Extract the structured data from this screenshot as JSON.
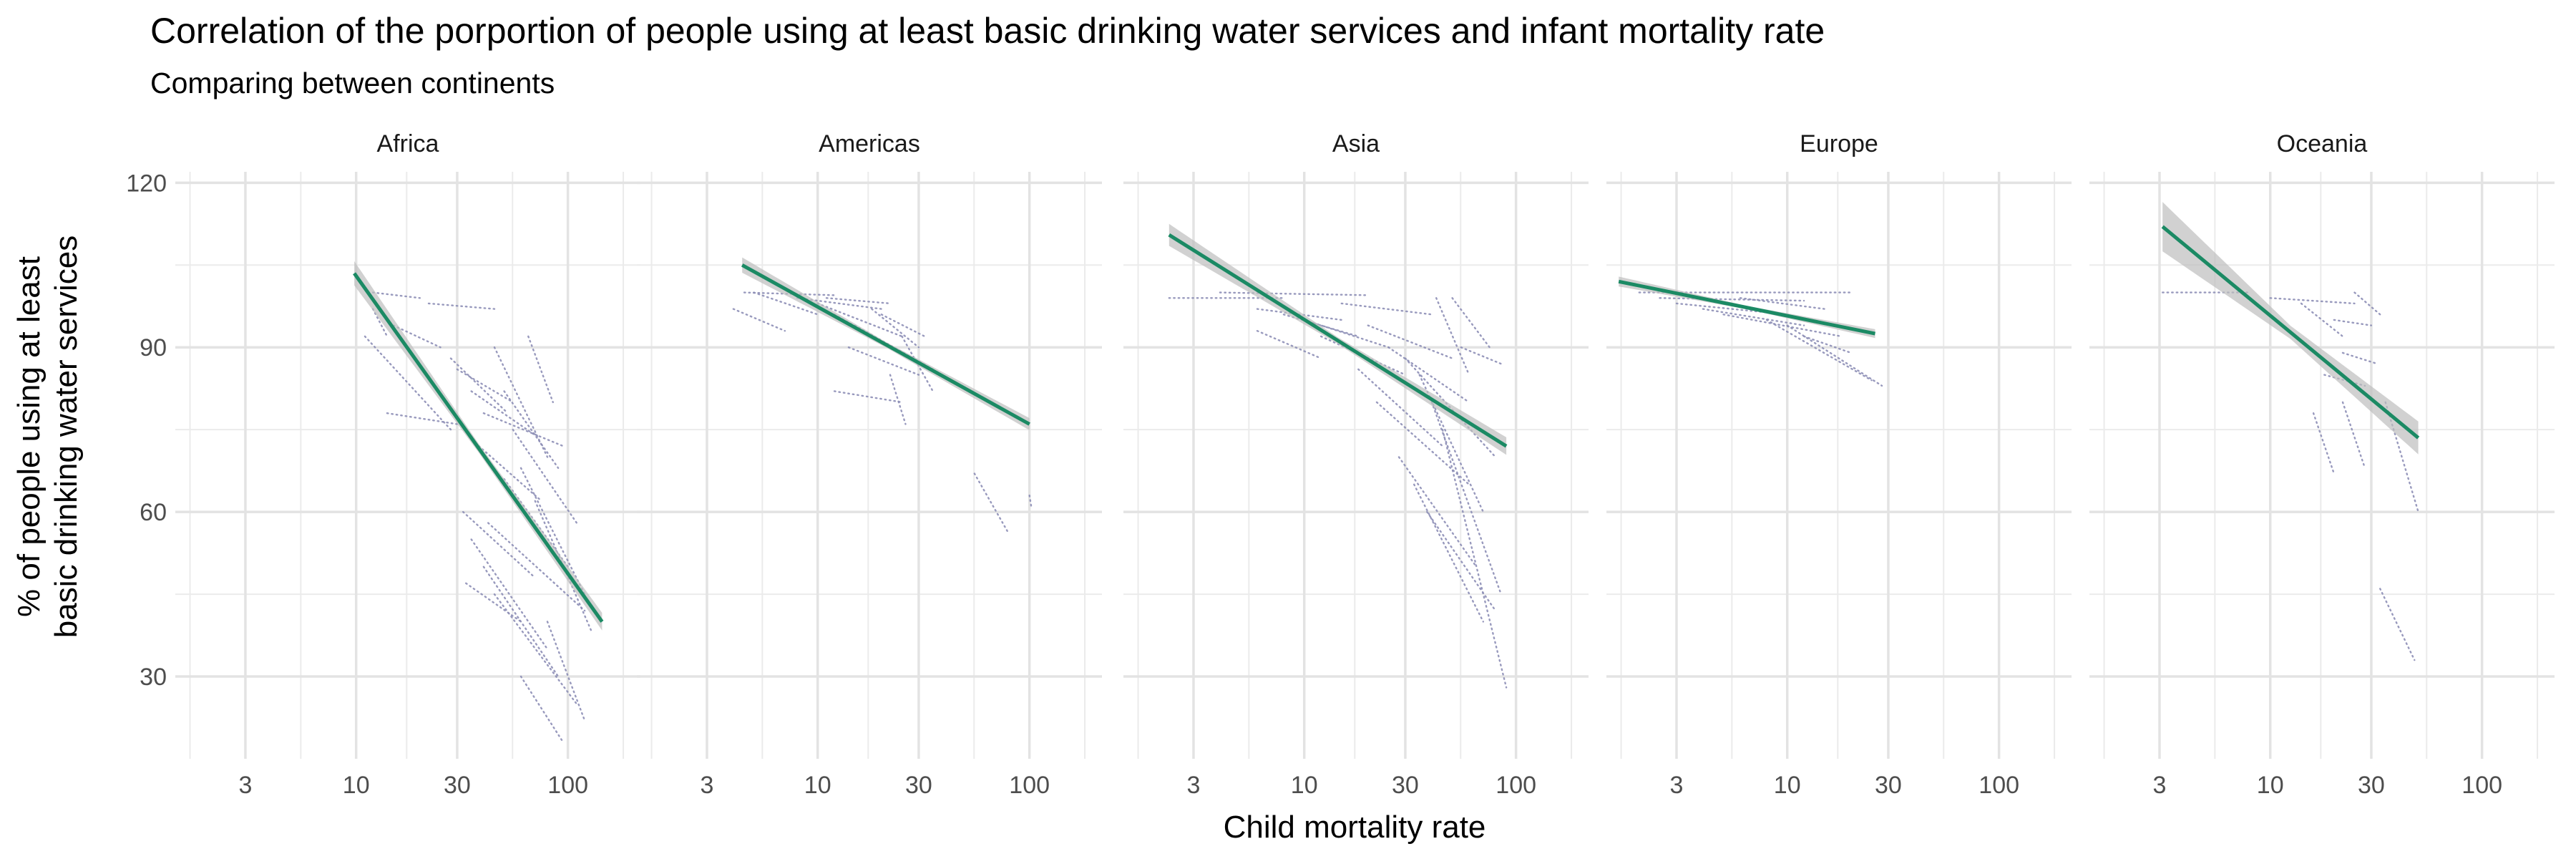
{
  "chart_data": {
    "type": "scatter",
    "title": "Correlation of the porportion of people using at least basic drinking water services and infant mortality rate",
    "subtitle": "Comparing between continents",
    "xlabel": "Child mortality rate",
    "ylabel_lines": [
      "% of people using at least",
      "basic drinking water services"
    ],
    "x_scale": "log10",
    "xlim": [
      1.4,
      220
    ],
    "ylim": [
      15,
      122
    ],
    "x_ticks": [
      3,
      10,
      30,
      100
    ],
    "x_tick_labels": [
      "3",
      "10",
      "30",
      "100"
    ],
    "y_ticks": [
      30,
      60,
      90,
      120
    ],
    "y_tick_labels": [
      "30",
      "60",
      "90",
      "120"
    ],
    "grid": true,
    "colors": {
      "points": "#8d8fb6",
      "fit_line": "#1b8a64",
      "confidence_band": "#bdbdbd",
      "grid": "#ebebeb"
    },
    "panels": [
      {
        "name": "Africa",
        "fit": {
          "x": [
            9.8,
            145
          ],
          "y": [
            103.5,
            40.0
          ]
        },
        "band_halfwidth": [
          2.2,
          0.8,
          1.6
        ],
        "tracks": [
          {
            "x": [
              12,
              20
            ],
            "y": [
              100,
              99
            ]
          },
          {
            "x": [
              12,
              14
            ],
            "y": [
              97,
              92
            ]
          },
          {
            "x": [
              15,
              25
            ],
            "y": [
              94,
              90
            ]
          },
          {
            "x": [
              14,
              30
            ],
            "y": [
              78,
              76
            ]
          },
          {
            "x": [
              11,
              28
            ],
            "y": [
              92,
              75
            ]
          },
          {
            "x": [
              22,
              45
            ],
            "y": [
              98,
              97
            ]
          },
          {
            "x": [
              30,
              55
            ],
            "y": [
              86,
              80
            ]
          },
          {
            "x": [
              35,
              70
            ],
            "y": [
              82,
              74
            ]
          },
          {
            "x": [
              40,
              95
            ],
            "y": [
              78,
              72
            ]
          },
          {
            "x": [
              45,
              80
            ],
            "y": [
              90,
              70
            ]
          },
          {
            "x": [
              55,
              110
            ],
            "y": [
              75,
              58
            ]
          },
          {
            "x": [
              50,
              100
            ],
            "y": [
              66,
              50
            ]
          },
          {
            "x": [
              60,
              120
            ],
            "y": [
              68,
              45
            ]
          },
          {
            "x": [
              70,
              130
            ],
            "y": [
              62,
              38
            ]
          },
          {
            "x": [
              32,
              70
            ],
            "y": [
              60,
              48
            ]
          },
          {
            "x": [
              35,
              80
            ],
            "y": [
              55,
              35
            ]
          },
          {
            "x": [
              40,
              90
            ],
            "y": [
              50,
              30
            ]
          },
          {
            "x": [
              45,
              110
            ],
            "y": [
              45,
              25
            ]
          },
          {
            "x": [
              60,
              95
            ],
            "y": [
              30,
              18
            ]
          },
          {
            "x": [
              80,
              120
            ],
            "y": [
              40,
              22
            ]
          },
          {
            "x": [
              38,
              75
            ],
            "y": [
              72,
              62
            ]
          },
          {
            "x": [
              50,
              90
            ],
            "y": [
              82,
              68
            ]
          },
          {
            "x": [
              65,
              85
            ],
            "y": [
              92,
              80
            ]
          },
          {
            "x": [
              28,
              52
            ],
            "y": [
              88,
              78
            ]
          },
          {
            "x": [
              42,
              120
            ],
            "y": [
              58,
              42
            ]
          },
          {
            "x": [
              33,
              60
            ],
            "y": [
              47,
              40
            ]
          }
        ]
      },
      {
        "name": "Americas",
        "fit": {
          "x": [
            4.4,
            100
          ],
          "y": [
            105.0,
            76.0
          ]
        },
        "band_halfwidth": [
          1.4,
          0.5,
          1.1
        ],
        "tracks": [
          {
            "x": [
              4.5,
              12
            ],
            "y": [
              100,
              99.5
            ]
          },
          {
            "x": [
              4,
              7
            ],
            "y": [
              97,
              93
            ]
          },
          {
            "x": [
              5,
              10
            ],
            "y": [
              100,
              96
            ]
          },
          {
            "x": [
              8,
              20
            ],
            "y": [
              99,
              97
            ]
          },
          {
            "x": [
              10,
              25
            ],
            "y": [
              98,
              92
            ]
          },
          {
            "x": [
              12,
              28
            ],
            "y": [
              96,
              88
            ]
          },
          {
            "x": [
              15,
              35
            ],
            "y": [
              94,
              86
            ]
          },
          {
            "x": [
              11,
              22
            ],
            "y": [
              99,
              98
            ]
          },
          {
            "x": [
              18,
              30
            ],
            "y": [
              97,
              90
            ]
          },
          {
            "x": [
              20,
              32
            ],
            "y": [
              96,
              92
            ]
          },
          {
            "x": [
              25,
              35
            ],
            "y": [
              92,
              82
            ]
          },
          {
            "x": [
              12,
              25
            ],
            "y": [
              82,
              80
            ]
          },
          {
            "x": [
              14,
              30
            ],
            "y": [
              90,
              85
            ]
          },
          {
            "x": [
              22,
              26
            ],
            "y": [
              85,
              76
            ]
          },
          {
            "x": [
              55,
              80
            ],
            "y": [
              67,
              56
            ]
          },
          {
            "x": [
              100,
              102
            ],
            "y": [
              63,
              61
            ]
          }
        ]
      },
      {
        "name": "Asia",
        "fit": {
          "x": [
            2.3,
            90
          ],
          "y": [
            110.5,
            72.0
          ]
        },
        "band_halfwidth": [
          2.0,
          0.6,
          1.6
        ],
        "tracks": [
          {
            "x": [
              2.3,
              8
            ],
            "y": [
              99,
              99
            ]
          },
          {
            "x": [
              4,
              20
            ],
            "y": [
              100,
              99.5
            ]
          },
          {
            "x": [
              6,
              15
            ],
            "y": [
              97,
              95
            ]
          },
          {
            "x": [
              6,
              12
            ],
            "y": [
              93,
              88
            ]
          },
          {
            "x": [
              8,
              18
            ],
            "y": [
              96,
              92
            ]
          },
          {
            "x": [
              10,
              25
            ],
            "y": [
              95,
              90
            ]
          },
          {
            "x": [
              12,
              30
            ],
            "y": [
              92,
              85
            ]
          },
          {
            "x": [
              15,
              40
            ],
            "y": [
              98,
              96
            ]
          },
          {
            "x": [
              20,
              50
            ],
            "y": [
              94,
              88
            ]
          },
          {
            "x": [
              25,
              60
            ],
            "y": [
              90,
              80
            ]
          },
          {
            "x": [
              30,
              80
            ],
            "y": [
              88,
              70
            ]
          },
          {
            "x": [
              35,
              70
            ],
            "y": [
              85,
              60
            ]
          },
          {
            "x": [
              40,
              85
            ],
            "y": [
              80,
              45
            ]
          },
          {
            "x": [
              45,
              90
            ],
            "y": [
              75,
              28
            ]
          },
          {
            "x": [
              50,
              75
            ],
            "y": [
              99,
              90
            ]
          },
          {
            "x": [
              55,
              85
            ],
            "y": [
              90,
              87
            ]
          },
          {
            "x": [
              22,
              60
            ],
            "y": [
              80,
              65
            ]
          },
          {
            "x": [
              28,
              65
            ],
            "y": [
              70,
              50
            ]
          },
          {
            "x": [
              33,
              70
            ],
            "y": [
              65,
              40
            ]
          },
          {
            "x": [
              18,
              45
            ],
            "y": [
              86,
              72
            ]
          },
          {
            "x": [
              38,
              80
            ],
            "y": [
              60,
              42
            ]
          },
          {
            "x": [
              42,
              60
            ],
            "y": [
              99,
              85
            ]
          }
        ]
      },
      {
        "name": "Europe",
        "fit": {
          "x": [
            1.6,
            26
          ],
          "y": [
            102.0,
            92.5
          ]
        },
        "band_halfwidth": [
          0.9,
          0.3,
          0.8
        ],
        "tracks": [
          {
            "x": [
              2,
              20
            ],
            "y": [
              100,
              100
            ]
          },
          {
            "x": [
              2.5,
              12
            ],
            "y": [
              99,
              98.5
            ]
          },
          {
            "x": [
              3,
              10
            ],
            "y": [
              98,
              96
            ]
          },
          {
            "x": [
              4,
              12
            ],
            "y": [
              97,
              94
            ]
          },
          {
            "x": [
              5,
              18
            ],
            "y": [
              96,
              92
            ]
          },
          {
            "x": [
              8,
              25
            ],
            "y": [
              95,
              84
            ]
          },
          {
            "x": [
              10,
              28
            ],
            "y": [
              94,
              83
            ]
          },
          {
            "x": [
              6,
              15
            ],
            "y": [
              99,
              97
            ]
          },
          {
            "x": [
              12,
              20
            ],
            "y": [
              92,
              89
            ]
          }
        ]
      },
      {
        "name": "Oceania",
        "fit": {
          "x": [
            3.1,
            50
          ],
          "y": [
            112.0,
            73.5
          ]
        },
        "band_halfwidth": [
          4.5,
          1.2,
          3.0
        ],
        "tracks": [
          {
            "x": [
              3.1,
              8
            ],
            "y": [
              100,
              100
            ]
          },
          {
            "x": [
              10,
              25
            ],
            "y": [
              99,
              98
            ]
          },
          {
            "x": [
              25,
              33
            ],
            "y": [
              100,
              96
            ]
          },
          {
            "x": [
              20,
              30
            ],
            "y": [
              95,
              94
            ]
          },
          {
            "x": [
              22,
              32
            ],
            "y": [
              89,
              87
            ]
          },
          {
            "x": [
              18,
              28
            ],
            "y": [
              85,
              83
            ]
          },
          {
            "x": [
              16,
              20
            ],
            "y": [
              78,
              67
            ]
          },
          {
            "x": [
              22,
              28
            ],
            "y": [
              80,
              68
            ]
          },
          {
            "x": [
              35,
              50
            ],
            "y": [
              80,
              60
            ]
          },
          {
            "x": [
              33,
              48
            ],
            "y": [
              46,
              33
            ]
          },
          {
            "x": [
              14,
              22
            ],
            "y": [
              98,
              92
            ]
          }
        ]
      }
    ]
  }
}
